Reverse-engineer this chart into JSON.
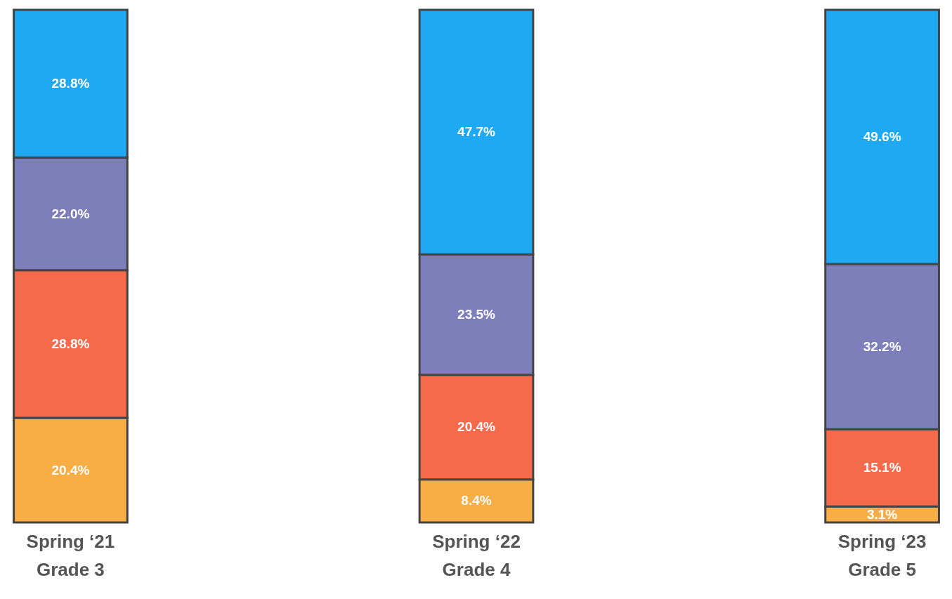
{
  "chart_data": {
    "type": "bar",
    "stacked": true,
    "categories": [
      "Spring ‘21\nGrade 3",
      "Spring ‘22\nGrade 4",
      "Spring ‘23\nGrade 5"
    ],
    "series": [
      {
        "color": "#f9ad45",
        "values": [
          20.4,
          8.4,
          3.1
        ],
        "value_labels": [
          "20.4%",
          "8.4%",
          "3.1%"
        ]
      },
      {
        "color": "#f46a4b",
        "values": [
          28.8,
          20.4,
          15.1
        ],
        "value_labels": [
          "28.8%",
          "20.4%",
          "15.1%"
        ]
      },
      {
        "color": "#7d7fbb",
        "values": [
          22.0,
          23.5,
          32.2
        ],
        "value_labels": [
          "22.0%",
          "23.5%",
          "32.2%"
        ]
      },
      {
        "color": "#1fa9f3",
        "values": [
          28.8,
          47.7,
          49.6
        ],
        "value_labels": [
          "28.8%",
          "47.7%",
          "49.6%"
        ]
      }
    ]
  }
}
